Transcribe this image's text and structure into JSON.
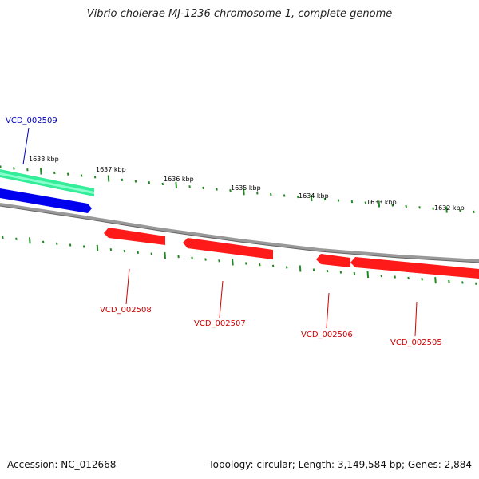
{
  "title": "Vibrio cholerae MJ-1236 chromosome 1, complete genome",
  "accession": "Accession: NC_012668",
  "topology": "Topology: circular; Length: 3,149,584 bp; Genes: 2,884",
  "colors": {
    "backbone": "#888888",
    "reverse_gene": "#ff0000",
    "forward_gene": "#0000ff",
    "feature": "#33ee99",
    "tick": "#228822",
    "reverse_label": "#cc0000",
    "forward_label": "#0000bb"
  },
  "ticks": [
    "1638 kbp",
    "1637 kbp",
    "1636 kbp",
    "1635 kbp",
    "1634 kbp",
    "1633 kbp",
    "1632 kbp"
  ],
  "genes": [
    {
      "id": "VCD_002509",
      "strand": "forward"
    },
    {
      "id": "VCD_002508",
      "strand": "reverse"
    },
    {
      "id": "VCD_002507",
      "strand": "reverse"
    },
    {
      "id": "VCD_002506",
      "strand": "reverse"
    },
    {
      "id": "VCD_002505",
      "strand": "reverse"
    }
  ]
}
